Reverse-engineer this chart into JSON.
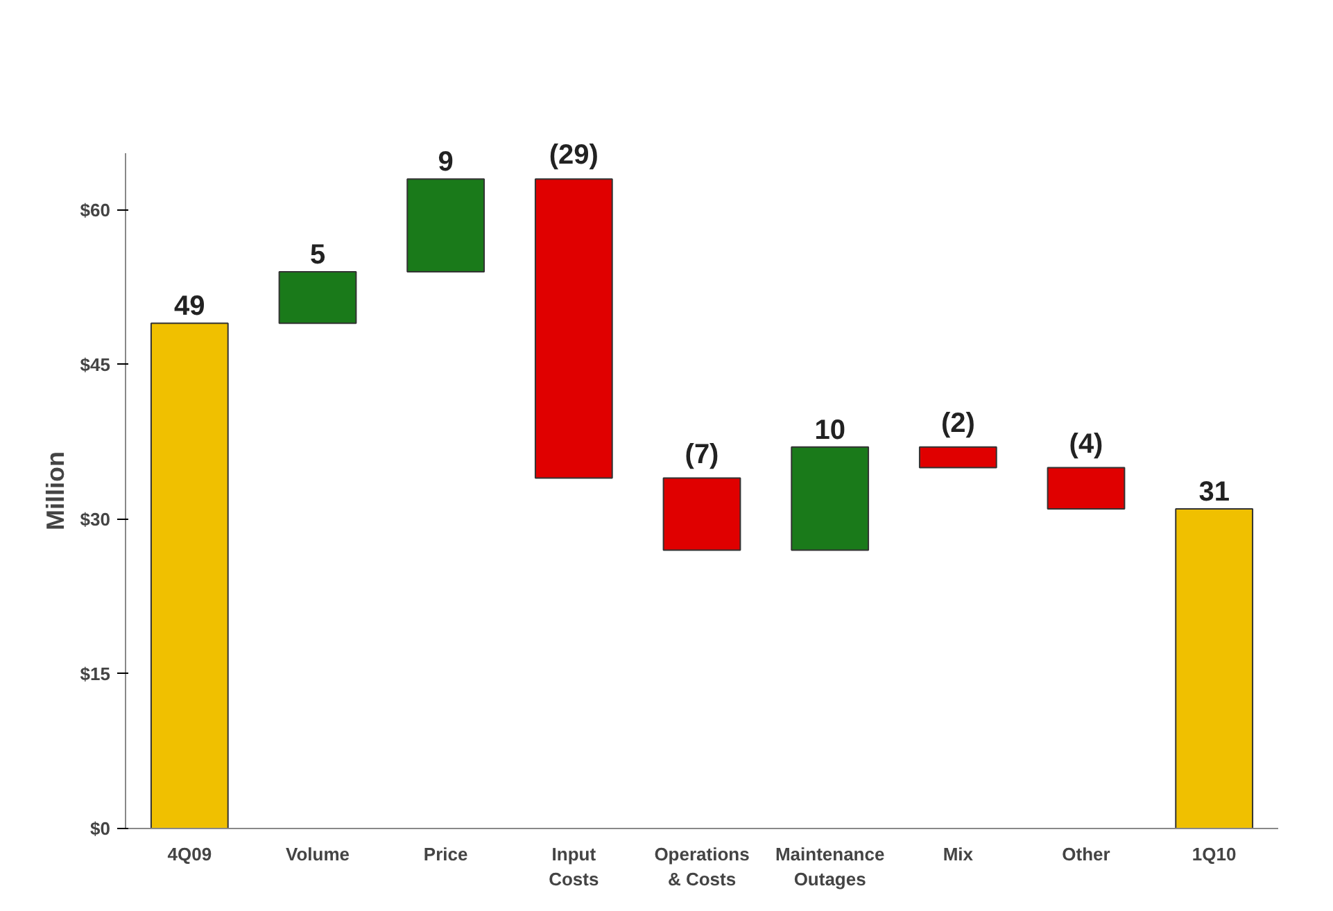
{
  "chart_data": {
    "type": "bar",
    "ylabel": "Million",
    "categories": [
      "4Q09",
      "Volume",
      "Price",
      "Input\nCosts",
      "Operations\n& Costs",
      "Maintenance\nOutages",
      "Mix",
      "Other",
      "1Q10"
    ],
    "values": [
      49,
      5,
      9,
      -29,
      -7,
      10,
      -2,
      -4,
      31
    ],
    "base": [
      0,
      49,
      54,
      63,
      34,
      27,
      37,
      35,
      0
    ],
    "colors": [
      "#f0c000",
      "#1a7a1a",
      "#1a7a1a",
      "#e00000",
      "#e00000",
      "#1a7a1a",
      "#e00000",
      "#e00000",
      "#f0c000"
    ],
    "value_labels": [
      "49",
      "5",
      "9",
      "(29)",
      "(7)",
      "10",
      "(2)",
      "(4)",
      "31"
    ],
    "ylim": [
      0,
      65.5
    ],
    "yticks": [
      {
        "value": 0,
        "label": "$0"
      },
      {
        "value": 15,
        "label": "$15"
      },
      {
        "value": 30,
        "label": "$30"
      },
      {
        "value": 45,
        "label": "$45"
      },
      {
        "value": 60,
        "label": "$60"
      }
    ],
    "grid": false
  }
}
